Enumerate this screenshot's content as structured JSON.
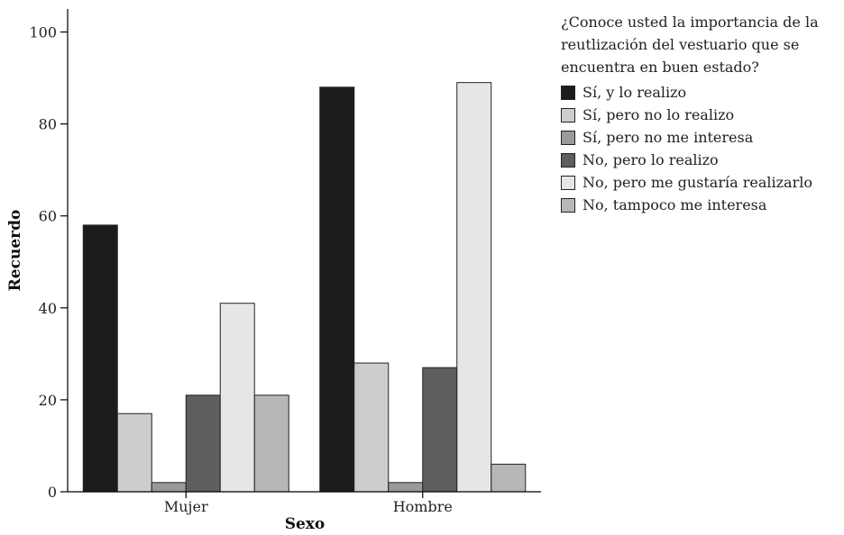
{
  "chart_data": {
    "type": "bar",
    "legend_title": "¿Conoce usted la importancia de la reutlización del vestuario que se encuentra en buen estado?",
    "xlabel": "Sexo",
    "ylabel": "Recuerdo",
    "ylim": [
      0,
      105
    ],
    "yticks": [
      0,
      20,
      40,
      60,
      80,
      100
    ],
    "categories": [
      "Mujer",
      "Hombre"
    ],
    "legend_position": "right",
    "grid": false,
    "series": [
      {
        "name": "Sí, y lo realizo",
        "color": "#1c1c1c",
        "values": [
          58,
          88
        ]
      },
      {
        "name": "Sí, pero no lo realizo",
        "color": "#cdcdcd",
        "values": [
          17,
          28
        ]
      },
      {
        "name": "Sí, pero no me interesa",
        "color": "#9a9a9a",
        "values": [
          2,
          2
        ]
      },
      {
        "name": "No, pero lo realizo",
        "color": "#5e5e5e",
        "values": [
          21,
          27
        ]
      },
      {
        "name": "No, pero me gustaría realizarlo",
        "color": "#e6e6e6",
        "values": [
          41,
          89
        ]
      },
      {
        "name": "No, tampoco me interesa",
        "color": "#b7b7b9",
        "values": [
          21,
          6
        ]
      }
    ]
  }
}
